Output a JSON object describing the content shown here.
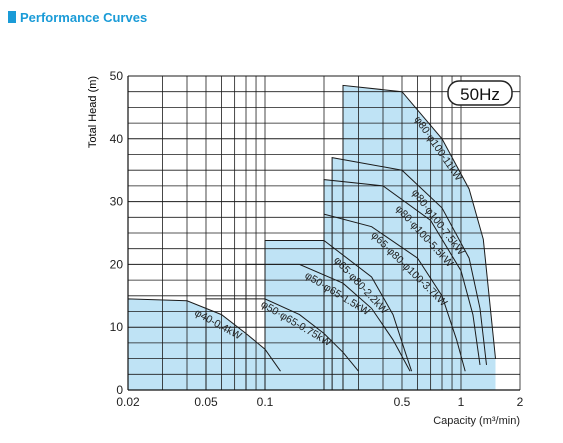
{
  "heading": {
    "text": "Performance Curves",
    "color": "#1a9bd7"
  },
  "chart_data": {
    "type": "area",
    "title": "",
    "frequency_badge": "50Hz",
    "xlabel": "Capacity (m³/min)",
    "ylabel": "Total Head (m)",
    "x_scale": "log",
    "xlim": [
      0.02,
      2
    ],
    "ylim": [
      0,
      50
    ],
    "x_ticks": [
      {
        "value": 0.02,
        "label": "0.02"
      },
      {
        "value": 0.05,
        "label": "0.05"
      },
      {
        "value": 0.1,
        "label": "0.1"
      },
      {
        "value": 0.5,
        "label": "0.5"
      },
      {
        "value": 1,
        "label": "1"
      },
      {
        "value": 2,
        "label": "2"
      }
    ],
    "y_ticks": [
      0,
      10,
      20,
      30,
      40,
      50
    ],
    "grid": true,
    "fill_color": "#bfe3f5",
    "series": [
      {
        "label": "φ40-0.4kW",
        "filled": true,
        "points": [
          [
            0.02,
            14.5
          ],
          [
            0.04,
            14.2
          ],
          [
            0.06,
            12.0
          ],
          [
            0.08,
            9.0
          ],
          [
            0.1,
            6.5
          ],
          [
            0.12,
            3.0
          ]
        ]
      },
      {
        "label": "φ50·φ65-0.75kW",
        "filled": false,
        "points": [
          [
            0.05,
            14.5
          ],
          [
            0.1,
            14.5
          ],
          [
            0.15,
            12.0
          ],
          [
            0.2,
            9.0
          ],
          [
            0.25,
            6.0
          ],
          [
            0.3,
            3.0
          ]
        ]
      },
      {
        "label": "φ50·φ65-1.5kW",
        "filled": false,
        "points": [
          [
            0.08,
            20.0
          ],
          [
            0.15,
            20.0
          ],
          [
            0.25,
            17.0
          ],
          [
            0.35,
            13.0
          ],
          [
            0.45,
            8.0
          ],
          [
            0.55,
            3.0
          ]
        ]
      },
      {
        "label": "φ65·φ80-2.2kW",
        "filled": true,
        "points": [
          [
            0.1,
            23.8
          ],
          [
            0.2,
            23.8
          ],
          [
            0.35,
            18.0
          ],
          [
            0.45,
            12.0
          ],
          [
            0.52,
            6.0
          ],
          [
            0.56,
            3.0
          ]
        ]
      },
      {
        "label": "φ65·φ80·φ100-3.7kW",
        "filled": false,
        "points": [
          [
            0.2,
            28.0
          ],
          [
            0.35,
            26.0
          ],
          [
            0.6,
            21.0
          ],
          [
            0.8,
            15.0
          ],
          [
            0.95,
            8.0
          ],
          [
            1.05,
            3.0
          ]
        ]
      },
      {
        "label": "φ80·φ100-5.5kW",
        "filled": true,
        "points": [
          [
            0.2,
            33.5
          ],
          [
            0.4,
            32.5
          ],
          [
            0.7,
            27.0
          ],
          [
            1.0,
            19.0
          ],
          [
            1.15,
            12.0
          ],
          [
            1.25,
            4.0
          ]
        ]
      },
      {
        "label": "φ80·φ100-7.5kW",
        "filled": true,
        "points": [
          [
            0.22,
            37.0
          ],
          [
            0.5,
            35.0
          ],
          [
            0.8,
            29.0
          ],
          [
            1.1,
            21.0
          ],
          [
            1.25,
            13.0
          ],
          [
            1.35,
            4.0
          ]
        ]
      },
      {
        "label": "φ80·φ100-11kW",
        "filled": true,
        "points": [
          [
            0.25,
            48.5
          ],
          [
            0.5,
            47.5
          ],
          [
            0.8,
            40.0
          ],
          [
            1.1,
            32.0
          ],
          [
            1.3,
            24.0
          ],
          [
            1.5,
            5.0
          ]
        ]
      }
    ]
  }
}
